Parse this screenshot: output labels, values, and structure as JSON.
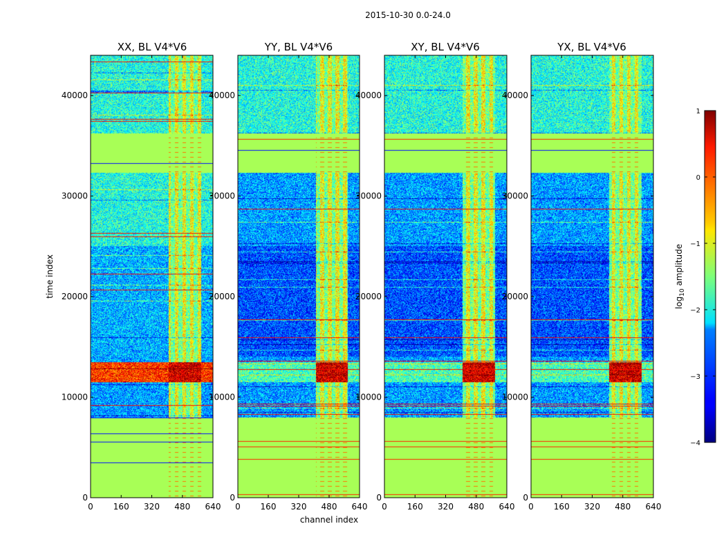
{
  "chart_data": {
    "type": "heatmap",
    "suptitle": "2015-10-30 0.0-24.0",
    "xlabel": "channel index",
    "ylabel": "time index",
    "panels": [
      {
        "title": "XX, BL V4*V6"
      },
      {
        "title": "YY, BL V4*V6"
      },
      {
        "title": "XY, BL V4*V6"
      },
      {
        "title": "YX, BL V4*V6"
      }
    ],
    "xlim": [
      0,
      640
    ],
    "ylim": [
      0,
      44000
    ],
    "x_ticks": [
      "0",
      "160",
      "320",
      "480",
      "640"
    ],
    "y_ticks": [
      "0",
      "10000",
      "20000",
      "30000",
      "40000"
    ],
    "colorbar": {
      "label": "log10 amplitude",
      "range": [
        -4,
        1
      ],
      "ticks": [
        "1",
        "0",
        "−1",
        "−2",
        "−3",
        "−4"
      ],
      "colormap": "jet"
    },
    "regions": {
      "rfi_channels": [
        410,
        580
      ],
      "flagged_time_ranges": [
        [
          0,
          8000
        ],
        [
          32300,
          36200
        ]
      ],
      "strong_time_band": [
        11500,
        13500
      ],
      "quiet_time_band": [
        14000,
        25000
      ],
      "flag_value": -1.3
    }
  },
  "colors": {
    "flag": "#a2ff5a",
    "rfi_row": "#ff5a00",
    "background": "#ffffff"
  }
}
